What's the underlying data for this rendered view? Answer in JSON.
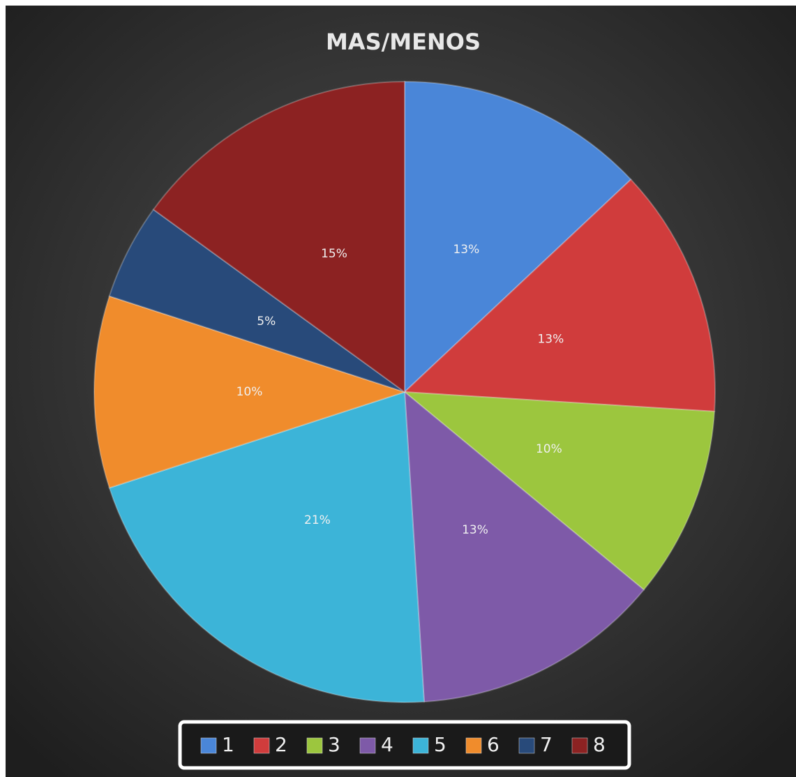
{
  "chart_data": {
    "type": "pie",
    "title": "MAS/MENOS",
    "categories": [
      "1",
      "2",
      "3",
      "4",
      "5",
      "6",
      "7",
      "8"
    ],
    "values": [
      13,
      13,
      10,
      13,
      21,
      10,
      5,
      15
    ],
    "value_labels": [
      "13%",
      "13%",
      "10%",
      "13%",
      "21%",
      "10%",
      "5%",
      "15%"
    ],
    "colors": [
      "#4a86d8",
      "#d03c3c",
      "#9cc63e",
      "#7e5aa8",
      "#3cb4d8",
      "#f08c2c",
      "#284a7a",
      "#8c2222"
    ],
    "legend": "bottom"
  }
}
